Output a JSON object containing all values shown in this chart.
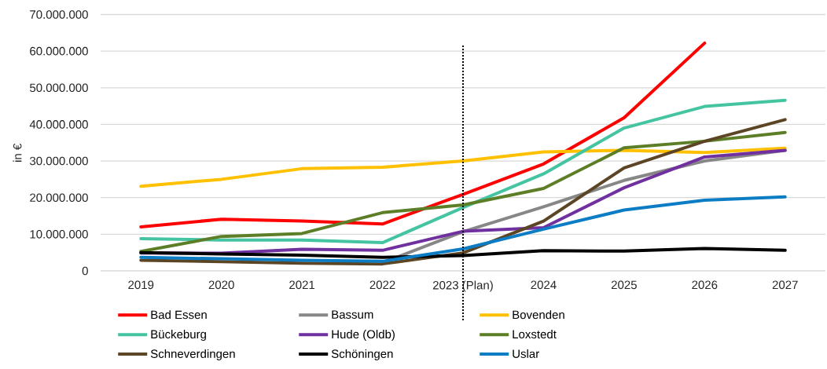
{
  "chart_data": {
    "type": "line",
    "ylabel": "in €",
    "categories": [
      "2019",
      "2020",
      "2021",
      "2022",
      "2023 (Plan)",
      "2024",
      "2025",
      "2026",
      "2027"
    ],
    "ylim": [
      0,
      70000000
    ],
    "yticks": [
      0,
      {
        "value": 10000000,
        "label": "10.000.000"
      },
      {
        "value": 20000000,
        "label": "20.000.000"
      },
      {
        "value": 30000000,
        "label": "30.000.000"
      },
      {
        "value": 40000000,
        "label": "40.000.000"
      },
      {
        "value": 50000000,
        "label": "50.000.000"
      },
      {
        "value": 60000000,
        "label": "60.000.000"
      },
      {
        "value": 70000000,
        "label": "70.000.000"
      }
    ],
    "grid": "y",
    "legend": "bottom",
    "ref_lines": [
      {
        "axis": "x",
        "value": "2023 (Plan)",
        "color": "#000000",
        "line_style": "dotted"
      }
    ],
    "series": [
      {
        "name": "Bad Essen",
        "color": "#ff0000",
        "values": [
          12000000,
          14100000,
          13600000,
          12800000,
          20900000,
          29200000,
          41800000,
          62200000,
          null
        ]
      },
      {
        "name": "Bassum",
        "color": "#878787",
        "values": [
          null,
          null,
          null,
          2200000,
          10700000,
          17500000,
          24700000,
          30000000,
          32900000
        ]
      },
      {
        "name": "Bovenden",
        "color": "#ffc000",
        "values": [
          23100000,
          25000000,
          27900000,
          28300000,
          30000000,
          32500000,
          32900000,
          32300000,
          33500000
        ]
      },
      {
        "name": "Bückeburg",
        "color": "#45c4a1",
        "values": [
          8800000,
          8400000,
          8400000,
          7700000,
          17300000,
          26500000,
          39000000,
          44900000,
          46600000
        ]
      },
      {
        "name": "Hude (Oldb)",
        "color": "#7030a0",
        "values": [
          4900000,
          4800000,
          5900000,
          5600000,
          10800000,
          11800000,
          22700000,
          31100000,
          32900000
        ]
      },
      {
        "name": "Loxstedt",
        "color": "#5c7e26",
        "values": [
          5300000,
          9400000,
          10200000,
          15900000,
          18000000,
          22500000,
          33600000,
          35400000,
          37800000
        ]
      },
      {
        "name": "Schneverdingen",
        "color": "#5b4525",
        "values": [
          2900000,
          2500000,
          2100000,
          1900000,
          4900000,
          13600000,
          28100000,
          35400000,
          41300000
        ]
      },
      {
        "name": "Schöningen",
        "color": "#000000",
        "values": [
          5000000,
          4600000,
          4300000,
          3700000,
          4200000,
          5500000,
          5400000,
          6100000,
          5600000
        ]
      },
      {
        "name": "Uslar",
        "color": "#0c7dc4",
        "values": [
          3700000,
          3300000,
          2900000,
          2600000,
          6000000,
          11400000,
          16600000,
          19300000,
          20200000
        ]
      }
    ]
  }
}
